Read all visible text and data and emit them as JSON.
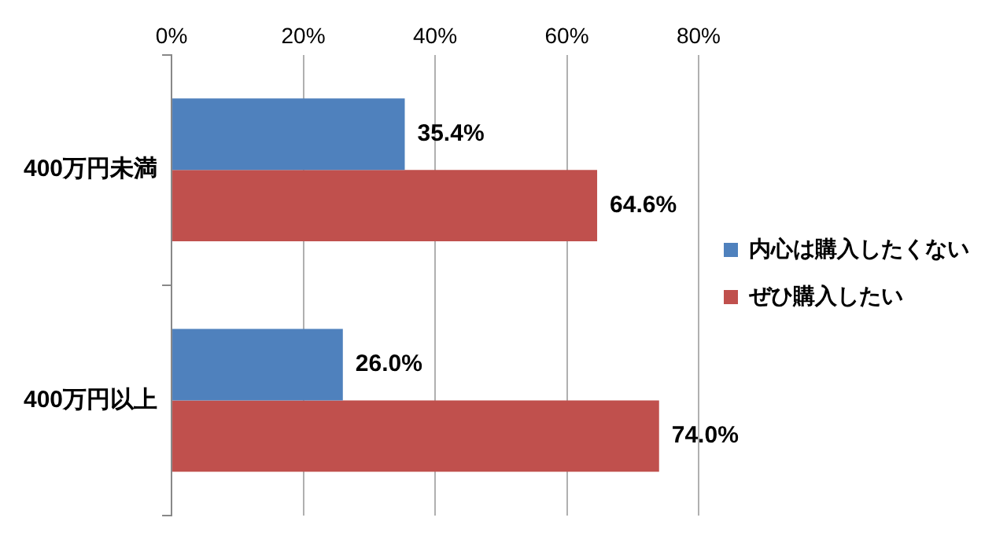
{
  "chart_data": {
    "type": "bar",
    "orientation": "horizontal",
    "categories": [
      "400万円未満",
      "400万円以上"
    ],
    "series": [
      {
        "name": "内心は購入したくない",
        "color": "#4f81bd",
        "values": [
          35.4,
          26.0
        ],
        "value_labels": [
          "35.4%",
          "26.0%"
        ]
      },
      {
        "name": "ぜひ購入したい",
        "color": "#c0504d",
        "values": [
          64.6,
          74.0
        ],
        "value_labels": [
          "64.6%",
          "74.0%"
        ]
      }
    ],
    "xlim": [
      0,
      80
    ],
    "xticks": [
      {
        "value": 0,
        "label": "0%"
      },
      {
        "value": 20,
        "label": "20%"
      },
      {
        "value": 40,
        "label": "40%"
      },
      {
        "value": 60,
        "label": "60%"
      },
      {
        "value": 80,
        "label": "80%"
      }
    ],
    "grid": "x",
    "legend": "right"
  }
}
